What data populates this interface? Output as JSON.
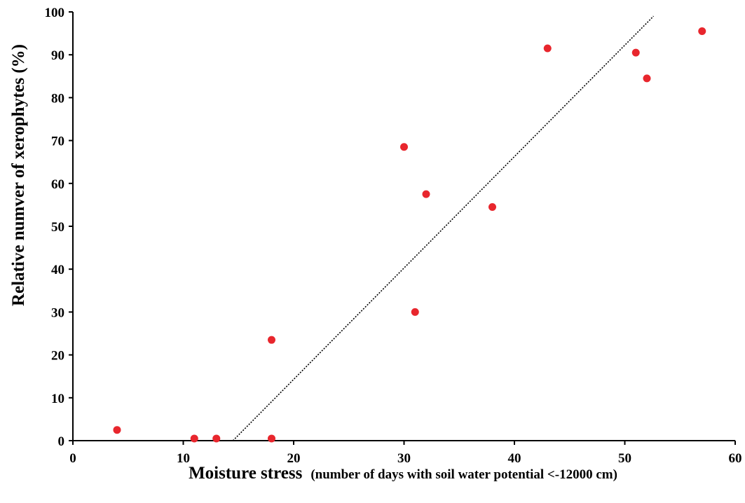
{
  "chart_data": {
    "type": "scatter",
    "title": "",
    "xlabel": "Moisture stress",
    "xlabel_note": "(number of days with soil water potential <-12000 cm)",
    "ylabel": "Relative numver of xerophytes (%)",
    "xlim": [
      0,
      60
    ],
    "ylim": [
      0,
      100
    ],
    "xticks": [
      0,
      10,
      20,
      30,
      40,
      50,
      60
    ],
    "yticks": [
      0,
      10,
      20,
      30,
      40,
      50,
      60,
      70,
      80,
      90,
      100
    ],
    "grid": false,
    "legend": "none",
    "colors": {
      "points": "#e8262d",
      "trendline": "#000000",
      "axes": "#000000"
    },
    "series": [
      {
        "points": [
          {
            "x": 4,
            "y": 2.5
          },
          {
            "x": 11,
            "y": 0.5
          },
          {
            "x": 13,
            "y": 0.5
          },
          {
            "x": 18,
            "y": 23.5
          },
          {
            "x": 18,
            "y": 0.5
          },
          {
            "x": 30,
            "y": 68.5
          },
          {
            "x": 31,
            "y": 30
          },
          {
            "x": 32,
            "y": 57.5
          },
          {
            "x": 38,
            "y": 54.5
          },
          {
            "x": 43,
            "y": 91.5
          },
          {
            "x": 51,
            "y": 90.5
          },
          {
            "x": 52,
            "y": 84.5
          },
          {
            "x": 57,
            "y": 95.5
          }
        ]
      }
    ],
    "trendline": {
      "type": "linear",
      "from": {
        "x": 14.5,
        "y": 0
      },
      "to": {
        "x": 52.6,
        "y": 99
      }
    }
  }
}
